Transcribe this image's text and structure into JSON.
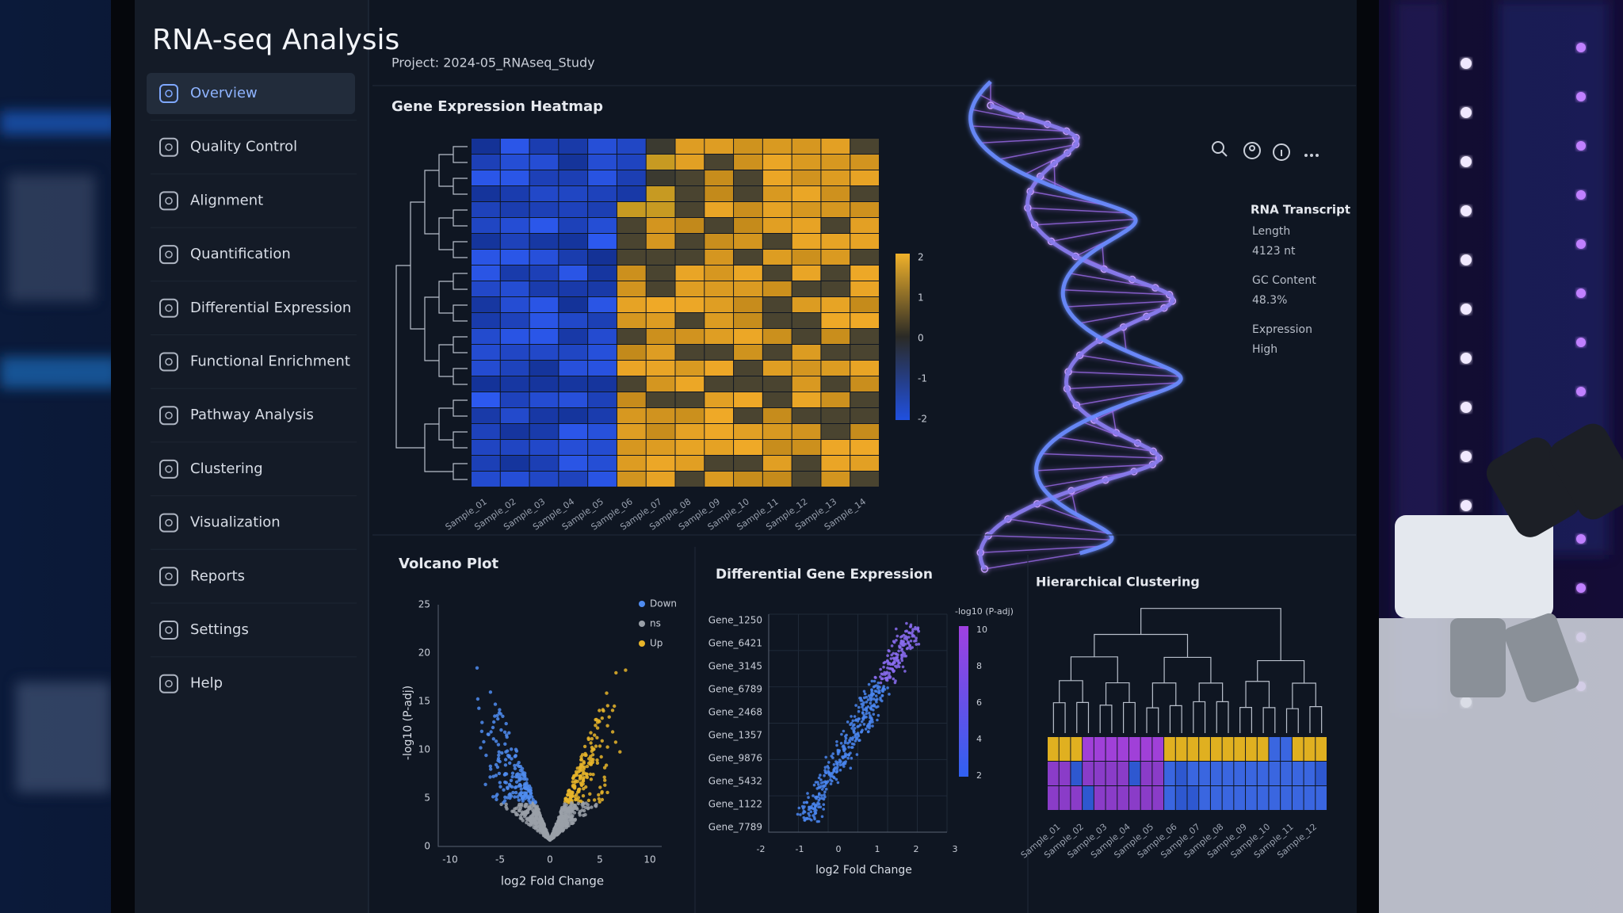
{
  "sidebar": {
    "title": "RNA-seq Analysis",
    "nav": [
      "Overview",
      "Quality Control",
      "Alignment",
      "Quantification",
      "Differential Expression",
      "Functional Enrichment",
      "Pathway Analysis",
      "Clustering",
      "Visualization",
      "Reports",
      "Settings",
      "Help"
    ]
  },
  "header": {
    "project": "Project: 2024-05_RNAseq_Study"
  },
  "heatmap": {
    "title": "Gene Expression Heatmap",
    "colorbar_ticks": [
      2,
      1,
      0,
      -1,
      -2
    ],
    "samples": [
      "Sample_01",
      "Sample_02",
      "Sample_03",
      "Sample_04",
      "Sample_05",
      "Sample_06",
      "Sample_07",
      "Sample_08",
      "Sample_09",
      "Sample_10",
      "Sample_11",
      "Sample_12",
      "Sample_13",
      "Sample_14"
    ]
  },
  "transcript": {
    "title": "RNA Transcript",
    "fields": [
      {
        "label": "Length",
        "value": "4123 nt"
      },
      {
        "label": "GC Content",
        "value": "48.3%"
      },
      {
        "label": "Expression",
        "value": "High"
      }
    ]
  },
  "volcano": {
    "title": "Volcano Plot",
    "legend": [
      {
        "name": "Down",
        "color": "#4f8cf0"
      },
      {
        "name": "ns",
        "color": "#9aa0a8"
      },
      {
        "name": "Up",
        "color": "#e8b52a"
      }
    ],
    "yticks": [
      25,
      20,
      15,
      10,
      5,
      0
    ],
    "xticks": [
      -10,
      -5,
      0,
      5,
      10
    ],
    "y_label": "-log10 (P-adj)",
    "x_label": "log2 Fold Change"
  },
  "dge": {
    "title": "Differential Gene Expression",
    "genes": [
      "Gene_1250",
      "Gene_6421",
      "Gene_3145",
      "Gene_6789",
      "Gene_2468",
      "Gene_1357",
      "Gene_9876",
      "Gene_5432",
      "Gene_1122",
      "Gene_7789"
    ],
    "colorbar_label": "-log10 (P-adj)",
    "colorbar_ticks": [
      10,
      8,
      6,
      4,
      2
    ],
    "xticks": [
      -2,
      -1,
      0,
      1,
      2,
      3
    ],
    "x_label": "log2 Fold Change"
  },
  "clustering": {
    "title": "Hierarchical Clustering",
    "samples": [
      "Sample_01",
      "Sample_02",
      "Sample_03",
      "Sample_04",
      "Sample_05",
      "Sample_06",
      "Sample_07",
      "Sample_08",
      "Sample_09",
      "Sample_10",
      "Sample_11",
      "Sample_12"
    ]
  }
}
